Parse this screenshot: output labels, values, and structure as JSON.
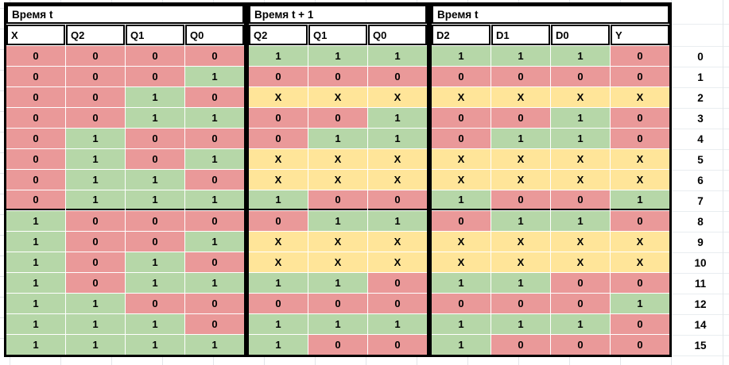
{
  "groups": [
    {
      "key": "t",
      "title": "Время t",
      "columns": [
        "X",
        "Q2",
        "Q1",
        "Q0"
      ]
    },
    {
      "key": "t1",
      "title": "Время t + 1",
      "columns": [
        "Q2",
        "Q1",
        "Q0"
      ]
    },
    {
      "key": "d",
      "title": "Время t",
      "columns": [
        "D2",
        "D1",
        "D0",
        "Y"
      ]
    }
  ],
  "rows": [
    {
      "num": "0",
      "t": [
        "0",
        "0",
        "0",
        "0"
      ],
      "t1": [
        "1",
        "1",
        "1"
      ],
      "d": [
        "1",
        "1",
        "1",
        "0"
      ]
    },
    {
      "num": "1",
      "t": [
        "0",
        "0",
        "0",
        "1"
      ],
      "t1": [
        "0",
        "0",
        "0"
      ],
      "d": [
        "0",
        "0",
        "0",
        "0"
      ]
    },
    {
      "num": "2",
      "t": [
        "0",
        "0",
        "1",
        "0"
      ],
      "t1": [
        "X",
        "X",
        "X"
      ],
      "d": [
        "X",
        "X",
        "X",
        "X"
      ]
    },
    {
      "num": "3",
      "t": [
        "0",
        "0",
        "1",
        "1"
      ],
      "t1": [
        "0",
        "0",
        "1"
      ],
      "d": [
        "0",
        "0",
        "1",
        "0"
      ]
    },
    {
      "num": "4",
      "t": [
        "0",
        "1",
        "0",
        "0"
      ],
      "t1": [
        "0",
        "1",
        "1"
      ],
      "d": [
        "0",
        "1",
        "1",
        "0"
      ]
    },
    {
      "num": "5",
      "t": [
        "0",
        "1",
        "0",
        "1"
      ],
      "t1": [
        "X",
        "X",
        "X"
      ],
      "d": [
        "X",
        "X",
        "X",
        "X"
      ]
    },
    {
      "num": "6",
      "t": [
        "0",
        "1",
        "1",
        "0"
      ],
      "t1": [
        "X",
        "X",
        "X"
      ],
      "d": [
        "X",
        "X",
        "X",
        "X"
      ]
    },
    {
      "num": "7",
      "t": [
        "0",
        "1",
        "1",
        "1"
      ],
      "t1": [
        "1",
        "0",
        "0"
      ],
      "d": [
        "1",
        "0",
        "0",
        "1"
      ],
      "thick_bottom": true
    },
    {
      "num": "8",
      "t": [
        "1",
        "0",
        "0",
        "0"
      ],
      "t1": [
        "0",
        "1",
        "1"
      ],
      "d": [
        "0",
        "1",
        "1",
        "0"
      ]
    },
    {
      "num": "9",
      "t": [
        "1",
        "0",
        "0",
        "1"
      ],
      "t1": [
        "X",
        "X",
        "X"
      ],
      "d": [
        "X",
        "X",
        "X",
        "X"
      ]
    },
    {
      "num": "10",
      "t": [
        "1",
        "0",
        "1",
        "0"
      ],
      "t1": [
        "X",
        "X",
        "X"
      ],
      "d": [
        "X",
        "X",
        "X",
        "X"
      ]
    },
    {
      "num": "11",
      "t": [
        "1",
        "0",
        "1",
        "1"
      ],
      "t1": [
        "1",
        "1",
        "0"
      ],
      "d": [
        "1",
        "1",
        "0",
        "0"
      ]
    },
    {
      "num": "12",
      "t": [
        "1",
        "1",
        "0",
        "0"
      ],
      "t1": [
        "0",
        "0",
        "0"
      ],
      "d": [
        "0",
        "0",
        "0",
        "1"
      ]
    },
    {
      "num": "14",
      "t": [
        "1",
        "1",
        "1",
        "0"
      ],
      "t1": [
        "1",
        "1",
        "1"
      ],
      "d": [
        "1",
        "1",
        "1",
        "0"
      ]
    },
    {
      "num": "15",
      "t": [
        "1",
        "1",
        "1",
        "1"
      ],
      "t1": [
        "1",
        "0",
        "0"
      ],
      "d": [
        "1",
        "0",
        "0",
        "0"
      ]
    }
  ],
  "value_colors": {
    "0": "#ea9999",
    "1": "#b6d7a8",
    "X": "#ffe599"
  },
  "border_color": "#000000",
  "gridline_color": "#e2e6ea"
}
